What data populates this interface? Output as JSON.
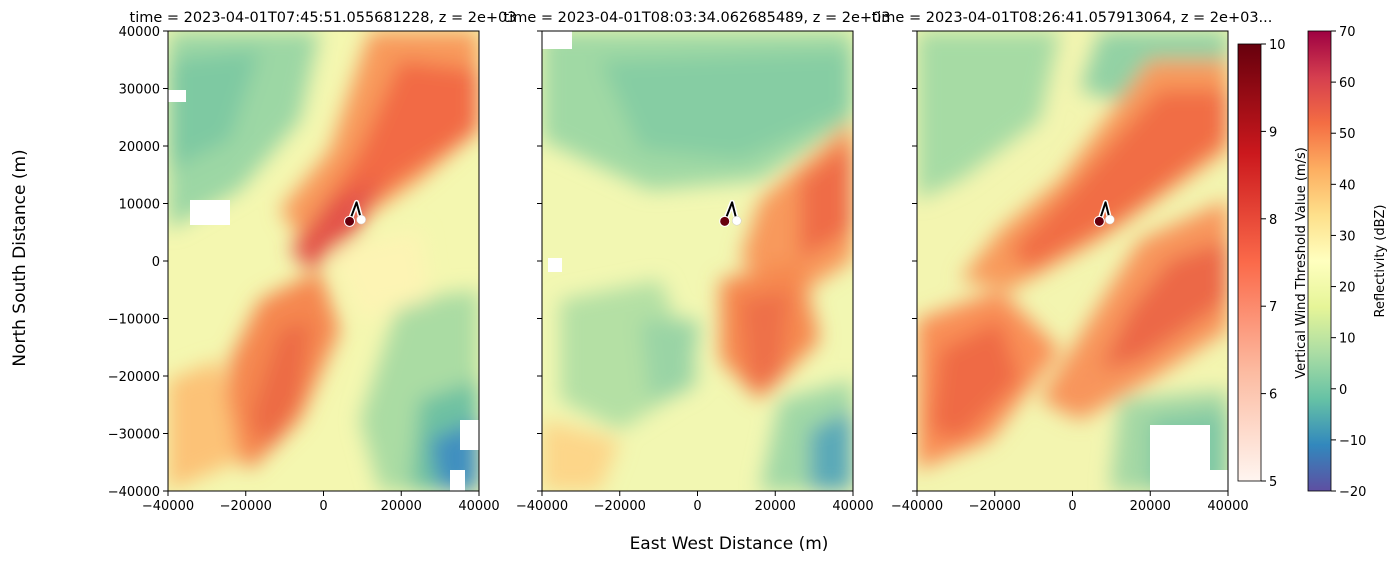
{
  "figure": {
    "ylabel": "North South Distance (m)",
    "xlabel": "East West Distance (m)"
  },
  "chart_data": [
    {
      "type": "heatmap",
      "title": "time = 2023-04-01T07:45:51.055681228, z = 2e+03",
      "xlim": [
        -40000,
        40000
      ],
      "ylim": [
        -40000,
        40000
      ],
      "xticks": [
        "−40000",
        "−20000",
        "0",
        "20000",
        "40000"
      ],
      "yticks": [
        "40000",
        "30000",
        "20000",
        "10000",
        "0",
        "−10000",
        "−20000",
        "−30000",
        "−40000"
      ],
      "markers": {
        "start": [
          6700,
          6900
        ],
        "path": [
          [
            6700,
            6900
          ],
          [
            8500,
            10200
          ],
          [
            9700,
            7200
          ]
        ]
      }
    },
    {
      "type": "heatmap",
      "title": "time = 2023-04-01T08:03:34.062685489, z = 2e+03",
      "xlim": [
        -40000,
        40000
      ],
      "ylim": [
        -40000,
        40000
      ],
      "xticks": [
        "−40000",
        "−20000",
        "0",
        "20000",
        "40000"
      ],
      "markers": {
        "start": [
          7000,
          6900
        ],
        "path": [
          [
            7000,
            6900
          ],
          [
            8900,
            10200
          ],
          [
            10100,
            7000
          ]
        ]
      }
    },
    {
      "type": "heatmap",
      "title": "time = 2023-04-01T08:26:41.057913064, z = 2e+03...",
      "xlim": [
        -40000,
        40000
      ],
      "ylim": [
        -40000,
        40000
      ],
      "xticks": [
        "−40000",
        "−20000",
        "0",
        "20000",
        "40000"
      ],
      "markers": {
        "start": [
          6900,
          6900
        ],
        "path": [
          [
            6900,
            6900
          ],
          [
            8500,
            10200
          ],
          [
            9600,
            7200
          ]
        ]
      }
    }
  ],
  "colorbars": [
    {
      "label": "Vertical Wind Threshold Value (m/s)",
      "range": [
        5,
        10
      ],
      "ticks": [
        "10",
        "9",
        "8",
        "7",
        "6",
        "5"
      ],
      "colors": [
        "#fff5f0",
        "#fcbba1",
        "#fb6a4a",
        "#cb181d",
        "#67000d"
      ]
    },
    {
      "label": "Reflectivity (dBZ)",
      "range": [
        -20,
        70
      ],
      "ticks": [
        "70",
        "60",
        "50",
        "40",
        "30",
        "20",
        "10",
        "0",
        "−10",
        "−20"
      ],
      "colors": [
        "#5e4fa2",
        "#3288bd",
        "#66c2a5",
        "#abdda4",
        "#e6f598",
        "#ffffbf",
        "#fee08b",
        "#fdae61",
        "#f46d43",
        "#d53e4f",
        "#9e0142"
      ]
    }
  ]
}
